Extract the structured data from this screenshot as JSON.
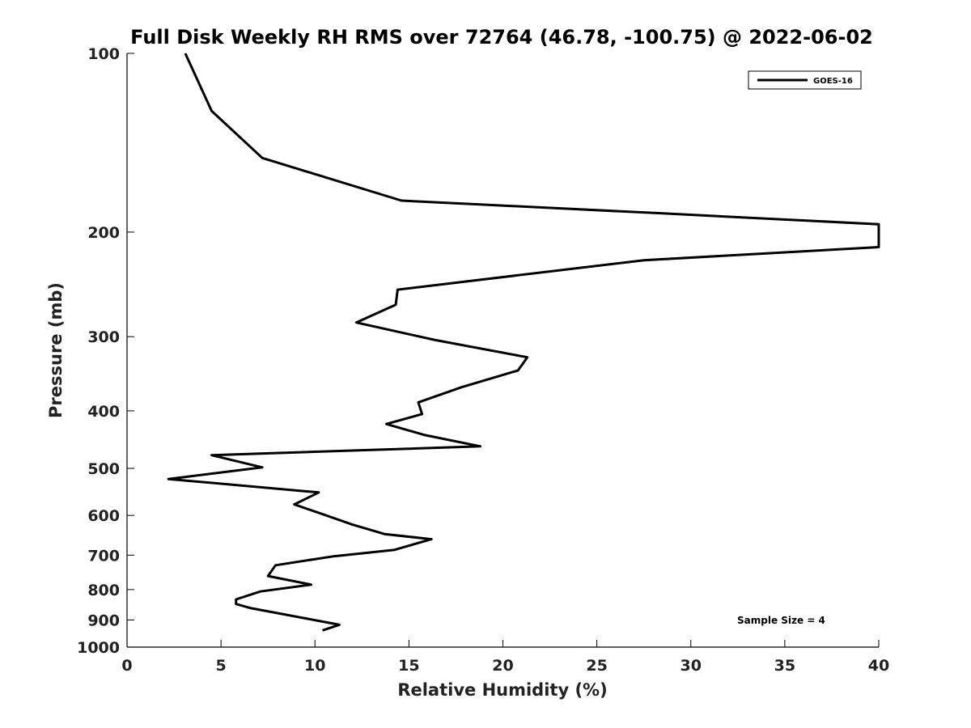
{
  "chart_data": {
    "type": "line",
    "title": "Full Disk Weekly RH RMS over 72764 (46.78, -100.75) @ 2022-06-02",
    "xlabel": "Relative Humidity (%)",
    "ylabel": "Pressure (mb)",
    "xlim": [
      0,
      40
    ],
    "ylim": [
      100,
      1000
    ],
    "yscale": "log",
    "y_reversed": true,
    "x_ticks": [
      0,
      5,
      10,
      15,
      20,
      25,
      30,
      35,
      40
    ],
    "y_ticks": [
      100,
      200,
      300,
      400,
      500,
      600,
      700,
      800,
      900,
      1000
    ],
    "legend": {
      "position": "top-right"
    },
    "annotation": "Sample Size = 4",
    "grid": false,
    "series": [
      {
        "name": "GOES-16",
        "color": "#000000",
        "points": [
          [
            3.1,
            100
          ],
          [
            4.5,
            125
          ],
          [
            7.2,
            150
          ],
          [
            14.6,
            177
          ],
          [
            28.5,
            186
          ],
          [
            40.0,
            194
          ],
          [
            40.0,
            212
          ],
          [
            27.5,
            223
          ],
          [
            14.4,
            250
          ],
          [
            14.3,
            265
          ],
          [
            12.2,
            284
          ],
          [
            16.4,
            304
          ],
          [
            21.3,
            325
          ],
          [
            20.8,
            342
          ],
          [
            17.8,
            365
          ],
          [
            15.5,
            387
          ],
          [
            15.7,
            405
          ],
          [
            13.8,
            421
          ],
          [
            15.8,
            439
          ],
          [
            18.8,
            459
          ],
          [
            4.5,
            475
          ],
          [
            7.2,
            498
          ],
          [
            2.2,
            521
          ],
          [
            10.2,
            549
          ],
          [
            8.9,
            575
          ],
          [
            10.4,
            597
          ],
          [
            12.0,
            622
          ],
          [
            13.7,
            645
          ],
          [
            16.2,
            658
          ],
          [
            14.2,
            686
          ],
          [
            11.0,
            703
          ],
          [
            7.9,
            728
          ],
          [
            7.5,
            759
          ],
          [
            9.8,
            785
          ],
          [
            7.1,
            806
          ],
          [
            5.8,
            831
          ],
          [
            5.8,
            846
          ],
          [
            6.6,
            860
          ],
          [
            10.1,
            902
          ],
          [
            11.3,
            917
          ],
          [
            10.4,
            937
          ]
        ]
      }
    ]
  }
}
